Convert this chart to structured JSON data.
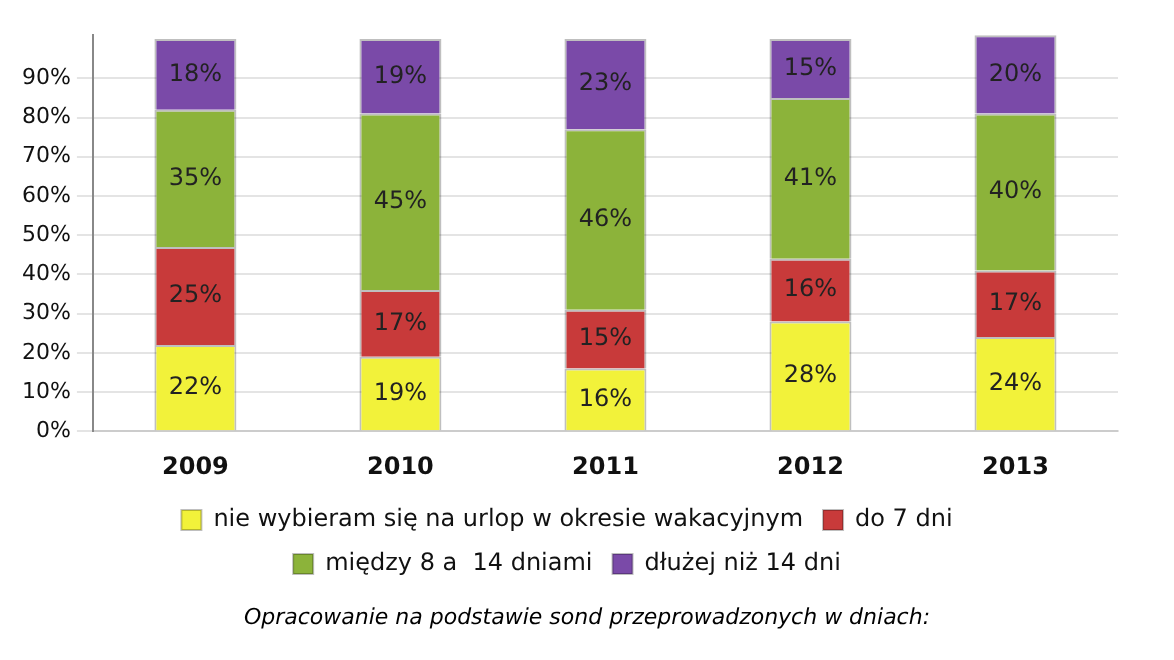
{
  "chart_data": {
    "type": "bar",
    "stacked": true,
    "categories": [
      "2009",
      "2010",
      "2011",
      "2012",
      "2013"
    ],
    "series": [
      {
        "name": "nie wybieram się na urlop w okresie wakacyjnym",
        "color": "#f2f23a",
        "values": [
          22,
          19,
          16,
          28,
          24
        ],
        "value_labels": [
          "22%",
          "19%",
          "16%",
          "28%",
          "24%"
        ]
      },
      {
        "name": "do 7 dni",
        "color": "#c83a3a",
        "values": [
          25,
          17,
          15,
          16,
          17
        ],
        "value_labels": [
          "25%",
          "17%",
          "15%",
          "16%",
          "17%"
        ]
      },
      {
        "name": "między 8 a  14 dniami",
        "color": "#8cb33a",
        "values": [
          35,
          45,
          46,
          41,
          40
        ],
        "value_labels": [
          "35%",
          "45%",
          "46%",
          "41%",
          "40%"
        ]
      },
      {
        "name": "dłużej niż 14 dni",
        "color": "#7a4aa8",
        "values": [
          18,
          19,
          23,
          15,
          20
        ],
        "value_labels": [
          "18%",
          "19%",
          "23%",
          "15%",
          "20%"
        ]
      }
    ],
    "ylim": [
      0,
      101
    ],
    "yticks": [
      {
        "value": 0,
        "label": "0%"
      },
      {
        "value": 10,
        "label": "10%"
      },
      {
        "value": 20,
        "label": "20%"
      },
      {
        "value": 30,
        "label": "30%"
      },
      {
        "value": 40,
        "label": "40%"
      },
      {
        "value": 50,
        "label": "50%"
      },
      {
        "value": 60,
        "label": "60%"
      },
      {
        "value": 70,
        "label": "70%"
      },
      {
        "value": 80,
        "label": "80%"
      },
      {
        "value": 90,
        "label": "90%"
      }
    ],
    "grid": "y",
    "legend": "bottom",
    "annotations": [
      "Opracowanie na podstawie sond przeprowadzonych w dniach:"
    ]
  }
}
